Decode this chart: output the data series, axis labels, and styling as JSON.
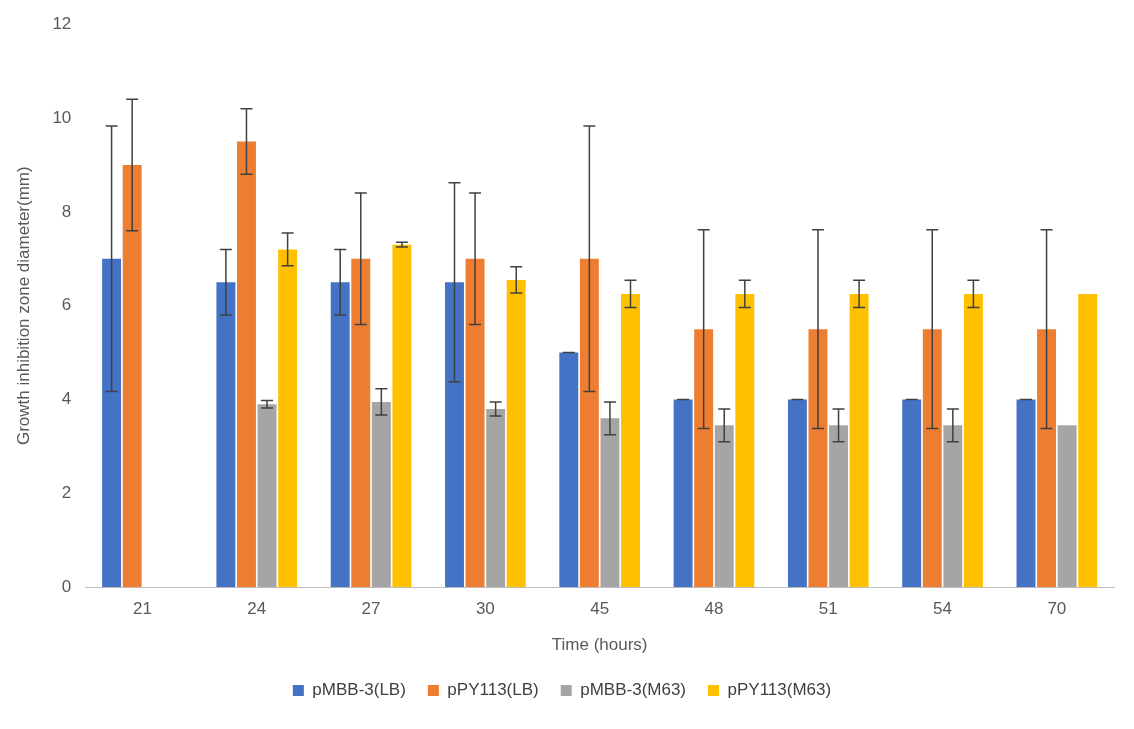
{
  "chart_data": {
    "type": "bar",
    "xlabel": "Time (hours)",
    "ylabel": "Growth inhibition zone diameter(mm)",
    "categories": [
      "21",
      "24",
      "27",
      "30",
      "45",
      "48",
      "51",
      "54",
      "70"
    ],
    "series": [
      {
        "name": "pMBB-3(LB)",
        "color": "#4472c4",
        "values": [
          7,
          6.5,
          6.5,
          6.5,
          5,
          4,
          4,
          4,
          4
        ],
        "errors": [
          2.83,
          0.7,
          0.7,
          2.12,
          0,
          0,
          0,
          0,
          0
        ]
      },
      {
        "name": "pPY113(LB)",
        "color": "#ed7d31",
        "values": [
          9,
          9.5,
          7,
          7,
          7,
          5.5,
          5.5,
          5.5,
          5.5
        ],
        "errors": [
          1.4,
          0.7,
          1.4,
          1.4,
          2.83,
          2.12,
          2.12,
          2.12,
          2.12
        ]
      },
      {
        "name": "pMBB-3(M63)",
        "color": "#a5a5a5",
        "values": [
          null,
          3.9,
          3.95,
          3.8,
          3.6,
          3.45,
          3.45,
          3.45,
          3.45
        ],
        "errors": [
          null,
          0.08,
          0.28,
          0.15,
          0.35,
          0.35,
          0.35,
          0.35,
          null
        ]
      },
      {
        "name": "pPY113(M63)",
        "color": "#ffc000",
        "values": [
          null,
          7.2,
          7.3,
          6.55,
          6.25,
          6.25,
          6.25,
          6.25,
          6.25
        ],
        "errors": [
          null,
          0.35,
          0.05,
          0.28,
          0.29,
          0.29,
          0.29,
          0.29,
          null
        ]
      }
    ],
    "ylim": [
      0,
      12
    ],
    "yticks": [
      0,
      2,
      4,
      6,
      8,
      10,
      12
    ],
    "grid": false,
    "legend": "bottom"
  }
}
